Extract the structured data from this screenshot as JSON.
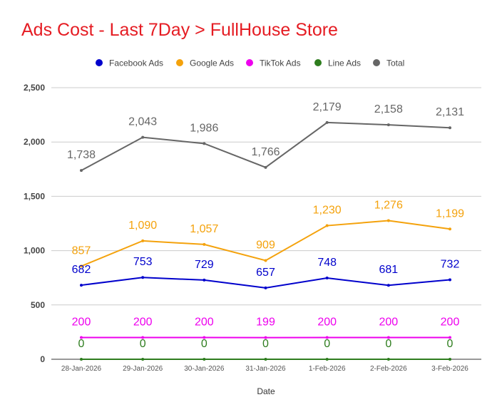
{
  "chart_data": {
    "type": "line",
    "title": "Ads Cost - Last 7Day > FullHouse Store",
    "xlabel": "Date",
    "ylabel": "",
    "categories": [
      "28-Jan-2026",
      "29-Jan-2026",
      "30-Jan-2026",
      "31-Jan-2026",
      "1-Feb-2026",
      "2-Feb-2026",
      "3-Feb-2026"
    ],
    "ylim": [
      0,
      2500
    ],
    "yticks": [
      0,
      500,
      1000,
      1500,
      2000,
      2500
    ],
    "ytick_labels": [
      "0",
      "500",
      "1,000",
      "1,500",
      "2,000",
      "2,500"
    ],
    "grid": true,
    "legend_position": "top",
    "series": [
      {
        "name": "Facebook Ads",
        "color": "#0000cc",
        "values": [
          682,
          753,
          729,
          657,
          748,
          681,
          732
        ],
        "labels": [
          "682",
          "753",
          "729",
          "657",
          "748",
          "681",
          "732"
        ]
      },
      {
        "name": "Google Ads",
        "color": "#f4a20c",
        "values": [
          857,
          1090,
          1057,
          909,
          1230,
          1276,
          1199
        ],
        "labels": [
          "857",
          "1,090",
          "1,057",
          "909",
          "1,230",
          "1,276",
          "1,199"
        ]
      },
      {
        "name": "TikTok Ads",
        "color": "#ee00ee",
        "values": [
          200,
          200,
          200,
          199,
          200,
          200,
          200
        ],
        "labels": [
          "200",
          "200",
          "200",
          "199",
          "200",
          "200",
          "200"
        ]
      },
      {
        "name": "Line Ads",
        "color": "#2e7d1e",
        "values": [
          0,
          0,
          0,
          0,
          0,
          0,
          0
        ],
        "labels": [
          "0",
          "0",
          "0",
          "0",
          "0",
          "0",
          "0"
        ]
      },
      {
        "name": "Total",
        "color": "#666666",
        "values": [
          1738,
          2043,
          1986,
          1766,
          2179,
          2158,
          2131
        ],
        "labels": [
          "1,738",
          "2,043",
          "1,986",
          "1,766",
          "2,179",
          "2,158",
          "2,131"
        ]
      }
    ]
  }
}
